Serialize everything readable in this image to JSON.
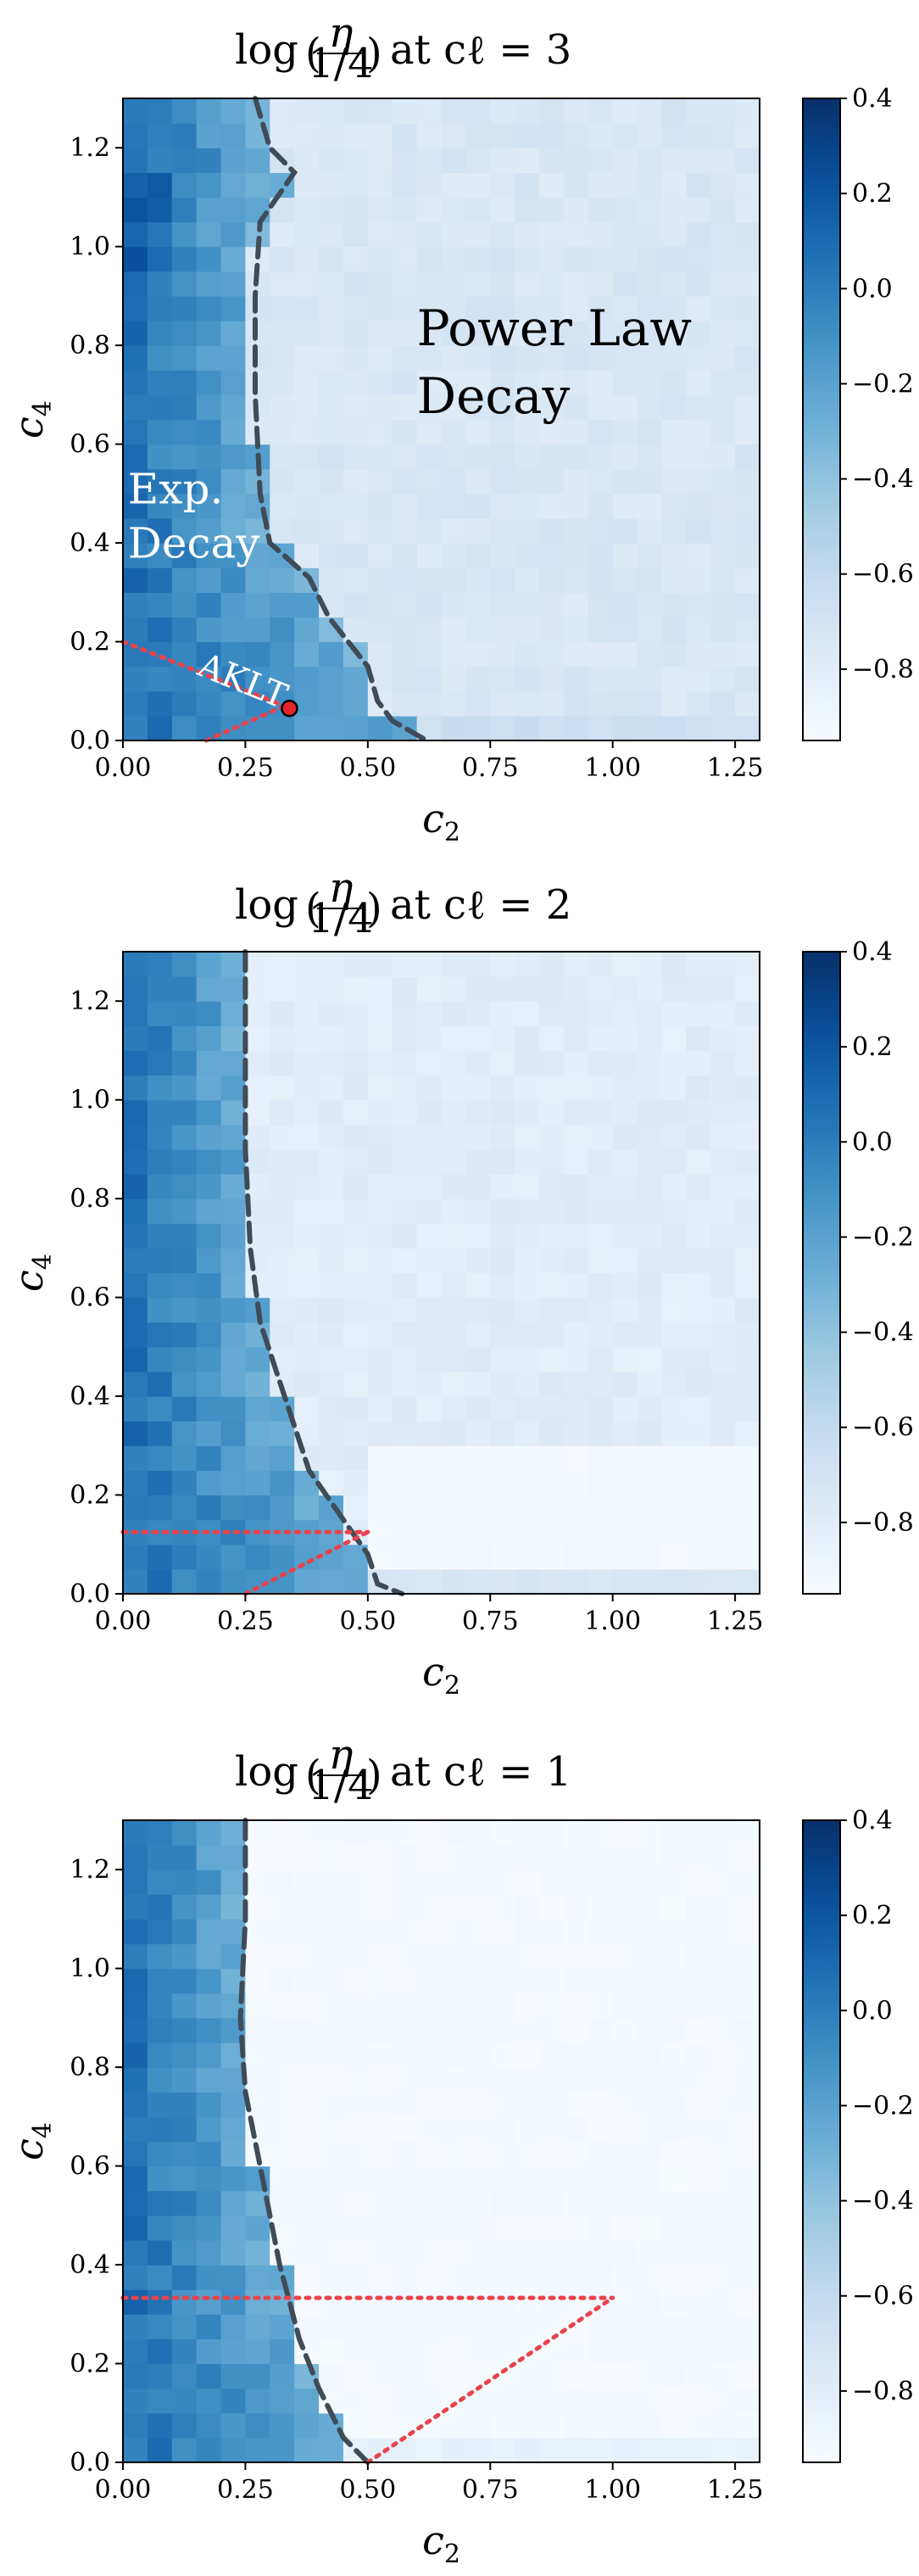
{
  "chart_data": [
    {
      "type": "heatmap",
      "title": "log(η/(1/4)) at  cℓ = 3",
      "title_parts": {
        "prefix": "log",
        "frac_num": "η",
        "frac_den": "1/4",
        "suffix": "at  cℓ = 3"
      },
      "xlabel": "c2",
      "ylabel": "c4",
      "xlim": [
        0,
        1.3
      ],
      "ylim": [
        0,
        1.3
      ],
      "xticks": [
        "0.00",
        "0.25",
        "0.50",
        "0.75",
        "1.00",
        "1.25"
      ],
      "yticks": [
        "0.0",
        "0.2",
        "0.4",
        "0.6",
        "0.8",
        "1.0",
        "1.2"
      ],
      "colorbar": {
        "range": [
          -0.95,
          0.4
        ],
        "ticks": [
          "0.4",
          "0.2",
          "0.0",
          "−0.2",
          "−0.4",
          "−0.6",
          "−0.8"
        ],
        "colormap": "Blues"
      },
      "phase_boundary": [
        [
          0.27,
          1.3
        ],
        [
          0.3,
          1.2
        ],
        [
          0.35,
          1.15
        ],
        [
          0.28,
          1.05
        ],
        [
          0.27,
          0.9
        ],
        [
          0.27,
          0.7
        ],
        [
          0.28,
          0.5
        ],
        [
          0.3,
          0.4
        ],
        [
          0.38,
          0.33
        ],
        [
          0.42,
          0.25
        ],
        [
          0.5,
          0.15
        ],
        [
          0.52,
          0.08
        ],
        [
          0.55,
          0.04
        ],
        [
          0.62,
          0.0
        ]
      ],
      "boundary_style": "dashed",
      "red_dotted_lines": [
        [
          [
            0.0,
            0.2
          ],
          [
            0.33,
            0.07
          ]
        ],
        [
          [
            0.17,
            0.0
          ],
          [
            0.33,
            0.07
          ]
        ]
      ],
      "point": {
        "label": "AKLT",
        "x": 0.34,
        "y": 0.065
      },
      "annotations": [
        {
          "text_lines": [
            "Power Law",
            "Decay"
          ],
          "x": 0.6,
          "y": 0.8,
          "style": "dark"
        },
        {
          "text_lines": [
            "Exp.",
            "Decay"
          ],
          "x": 0.01,
          "y": 0.48,
          "style": "light"
        }
      ],
      "model": {
        "k": 3,
        "grid_n": 26
      }
    },
    {
      "type": "heatmap",
      "title": "log(η/(1/4)) at cℓ = 2",
      "title_parts": {
        "prefix": "log",
        "frac_num": "η",
        "frac_den": "1/4",
        "suffix": "at cℓ = 2"
      },
      "xlabel": "c2",
      "ylabel": "c4",
      "xlim": [
        0,
        1.3
      ],
      "ylim": [
        0,
        1.3
      ],
      "xticks": [
        "0.00",
        "0.25",
        "0.50",
        "0.75",
        "1.00",
        "1.25"
      ],
      "yticks": [
        "0.0",
        "0.2",
        "0.4",
        "0.6",
        "0.8",
        "1.0",
        "1.2"
      ],
      "colorbar": {
        "range": [
          -0.95,
          0.4
        ],
        "ticks": [
          "0.4",
          "0.2",
          "0.0",
          "−0.2",
          "−0.4",
          "−0.6",
          "−0.8"
        ],
        "colormap": "Blues"
      },
      "phase_boundary": [
        [
          0.25,
          1.3
        ],
        [
          0.25,
          1.1
        ],
        [
          0.25,
          0.9
        ],
        [
          0.26,
          0.7
        ],
        [
          0.28,
          0.55
        ],
        [
          0.33,
          0.4
        ],
        [
          0.38,
          0.25
        ],
        [
          0.45,
          0.15
        ],
        [
          0.5,
          0.08
        ],
        [
          0.52,
          0.02
        ],
        [
          0.57,
          0.0
        ]
      ],
      "boundary_style": "dashed",
      "red_dotted_lines": [
        [
          [
            0.0,
            0.125
          ],
          [
            0.5,
            0.125
          ]
        ],
        [
          [
            0.25,
            0.0
          ],
          [
            0.5,
            0.125
          ]
        ]
      ],
      "annotations": [],
      "model": {
        "k": 2,
        "grid_n": 26
      }
    },
    {
      "type": "heatmap",
      "title": "log(η/(1/4)) at cℓ = 1",
      "title_parts": {
        "prefix": "log",
        "frac_num": "η",
        "frac_den": "1/4",
        "suffix": "at cℓ = 1"
      },
      "xlabel": "c2",
      "ylabel": "c4",
      "xlim": [
        0,
        1.3
      ],
      "ylim": [
        0,
        1.3
      ],
      "xticks": [
        "0.00",
        "0.25",
        "0.50",
        "0.75",
        "1.00",
        "1.25"
      ],
      "yticks": [
        "0.0",
        "0.2",
        "0.4",
        "0.6",
        "0.8",
        "1.0",
        "1.2"
      ],
      "colorbar": {
        "range": [
          -0.95,
          0.4
        ],
        "ticks": [
          "0.4",
          "0.2",
          "0.0",
          "−0.2",
          "−0.4",
          "−0.6",
          "−0.8"
        ],
        "colormap": "Blues"
      },
      "phase_boundary": [
        [
          0.25,
          1.3
        ],
        [
          0.25,
          1.1
        ],
        [
          0.24,
          0.9
        ],
        [
          0.25,
          0.75
        ],
        [
          0.28,
          0.6
        ],
        [
          0.32,
          0.4
        ],
        [
          0.36,
          0.25
        ],
        [
          0.4,
          0.15
        ],
        [
          0.45,
          0.05
        ],
        [
          0.5,
          0.0
        ]
      ],
      "boundary_style": "dashed",
      "red_dotted_lines": [
        [
          [
            0.0,
            0.333
          ],
          [
            1.0,
            0.333
          ]
        ],
        [
          [
            0.5,
            0.0
          ],
          [
            1.0,
            0.333
          ]
        ]
      ],
      "annotations": [],
      "model": {
        "k": 1,
        "grid_n": 26
      }
    }
  ]
}
